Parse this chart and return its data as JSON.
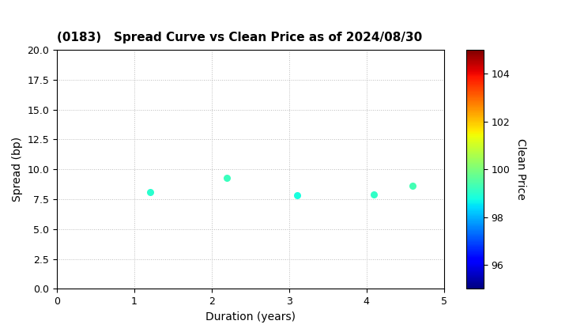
{
  "title": "(0183)   Spread Curve vs Clean Price as of 2024/08/30",
  "xlabel": "Duration (years)",
  "ylabel": "Spread (bp)",
  "colorbar_label": "Clean Price",
  "xlim": [
    0,
    5
  ],
  "ylim": [
    0.0,
    20.0
  ],
  "xticks": [
    0,
    1,
    2,
    3,
    4,
    5
  ],
  "yticks": [
    0.0,
    2.5,
    5.0,
    7.5,
    10.0,
    12.5,
    15.0,
    17.5,
    20.0
  ],
  "colorbar_ticks": [
    96,
    98,
    100,
    102,
    104
  ],
  "colorbar_vmin": 95.0,
  "colorbar_vmax": 105.0,
  "points": [
    {
      "duration": 1.2,
      "spread": 8.1,
      "price": 99.0
    },
    {
      "duration": 2.2,
      "spread": 9.3,
      "price": 99.2
    },
    {
      "duration": 3.1,
      "spread": 7.8,
      "price": 98.8
    },
    {
      "duration": 4.1,
      "spread": 7.9,
      "price": 99.1
    },
    {
      "duration": 4.6,
      "spread": 8.6,
      "price": 99.3
    }
  ],
  "marker_size": 30,
  "background_color": "#ffffff",
  "grid_color": "#bbbbbb",
  "title_fontsize": 11,
  "label_fontsize": 10,
  "tick_fontsize": 9
}
